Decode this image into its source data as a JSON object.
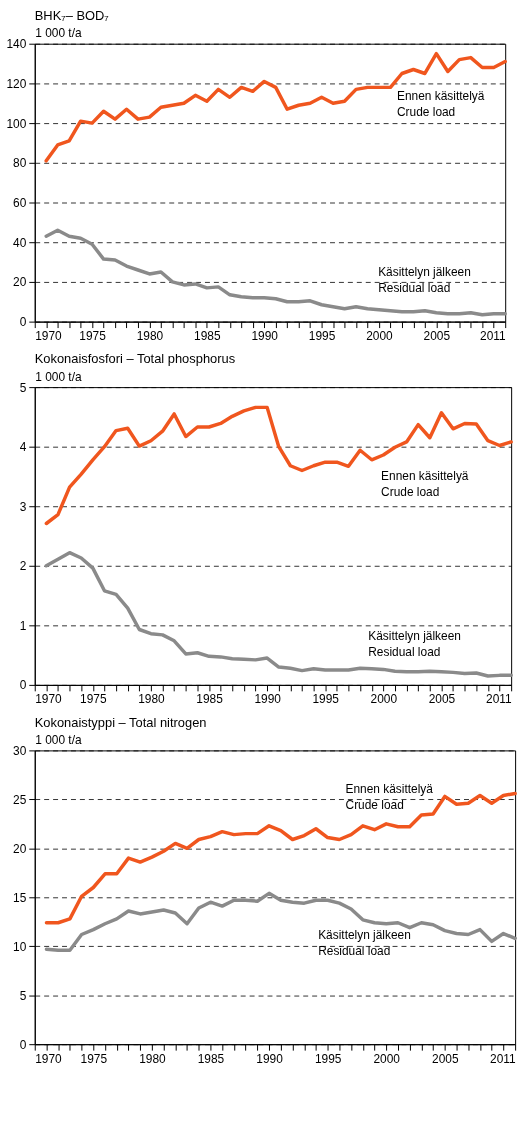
{
  "chart_data": [
    {
      "type": "line",
      "title": "BHK₇– BOD₇",
      "ylabel": "1 000 t/a",
      "x": [
        1971,
        1972,
        1973,
        1974,
        1975,
        1976,
        1977,
        1978,
        1979,
        1980,
        1981,
        1982,
        1983,
        1984,
        1985,
        1986,
        1987,
        1988,
        1989,
        1990,
        1991,
        1992,
        1993,
        1994,
        1995,
        1996,
        1997,
        1998,
        1999,
        2000,
        2001,
        2002,
        2003,
        2004,
        2005,
        2006,
        2007,
        2008,
        2009,
        2010,
        2011
      ],
      "series": [
        {
          "name": "Ennen käsittelyä\nCrude load",
          "color": "#f0561e",
          "values": [
            81,
            89,
            91,
            101,
            100,
            106,
            102,
            107,
            102,
            103,
            108,
            109,
            110,
            114,
            111,
            117,
            113,
            118,
            116,
            121,
            118,
            107,
            109,
            110,
            113,
            110,
            111,
            117,
            118,
            118,
            118,
            125,
            127,
            125,
            135,
            126,
            132,
            133,
            128,
            128,
            131
          ]
        },
        {
          "name": "Käsittelyn jälkeen\nResidual load",
          "color": "#8a8a8a",
          "values": [
            43,
            46,
            43,
            42,
            39,
            31.5,
            31,
            28,
            26,
            24,
            25,
            20,
            18.5,
            19,
            17,
            17.5,
            13.5,
            12.5,
            12,
            12,
            11.5,
            10,
            10,
            10.5,
            8.5,
            7.5,
            6.5,
            7.5,
            6.5,
            6,
            5.5,
            5,
            5,
            5.5,
            4.5,
            4,
            4,
            4.5,
            3.5,
            4,
            4
          ]
        }
      ],
      "xlim": [
        1970,
        2011
      ],
      "xticks": [
        1970,
        {
          "value": 1971,
          "label": null
        },
        {
          "value": 1972,
          "label": null
        },
        {
          "value": 1973,
          "label": null
        },
        {
          "value": 1974,
          "label": null
        },
        1975,
        {
          "value": 1976,
          "label": null
        },
        {
          "value": 1977,
          "label": null
        },
        {
          "value": 1978,
          "label": null
        },
        {
          "value": 1979,
          "label": null
        },
        1980,
        {
          "value": 1981,
          "label": null
        },
        {
          "value": 1982,
          "label": null
        },
        {
          "value": 1983,
          "label": null
        },
        {
          "value": 1984,
          "label": null
        },
        1985,
        {
          "value": 1986,
          "label": null
        },
        {
          "value": 1987,
          "label": null
        },
        {
          "value": 1988,
          "label": null
        },
        {
          "value": 1989,
          "label": null
        },
        1990,
        {
          "value": 1991,
          "label": null
        },
        {
          "value": 1992,
          "label": null
        },
        {
          "value": 1993,
          "label": null
        },
        {
          "value": 1994,
          "label": null
        },
        1995,
        {
          "value": 1996,
          "label": null
        },
        {
          "value": 1997,
          "label": null
        },
        {
          "value": 1998,
          "label": null
        },
        {
          "value": 1999,
          "label": null
        },
        2000,
        {
          "value": 2001,
          "label": null
        },
        {
          "value": 2002,
          "label": null
        },
        {
          "value": 2003,
          "label": null
        },
        {
          "value": 2004,
          "label": null
        },
        2005,
        {
          "value": 2006,
          "label": null
        },
        {
          "value": 2007,
          "label": null
        },
        {
          "value": 2008,
          "label": null
        },
        {
          "value": 2009,
          "label": null
        },
        {
          "value": 2010,
          "label": null
        },
        2011
      ],
      "ylim": [
        0,
        140
      ],
      "yticks": [
        0,
        20,
        40,
        60,
        80,
        100,
        120,
        140
      ],
      "grid": "y"
    },
    {
      "type": "line",
      "title": "Kokonaisfosfori – Total phosphorus",
      "ylabel": "1 000 t/a",
      "x": [
        1971,
        1972,
        1973,
        1974,
        1975,
        1976,
        1977,
        1978,
        1979,
        1980,
        1981,
        1982,
        1983,
        1984,
        1985,
        1986,
        1987,
        1988,
        1989,
        1990,
        1991,
        1992,
        1993,
        1994,
        1995,
        1996,
        1997,
        1998,
        1999,
        2000,
        2001,
        2002,
        2003,
        2004,
        2005,
        2006,
        2007,
        2008,
        2009,
        2010,
        2011
      ],
      "series": [
        {
          "name": "Ennen käsittelyä\nCrude load",
          "color": "#f0561e",
          "values": [
            2.71,
            2.86,
            3.32,
            3.54,
            3.78,
            4.0,
            4.27,
            4.31,
            4.01,
            4.1,
            4.26,
            4.55,
            4.17,
            4.33,
            4.33,
            4.39,
            4.51,
            4.6,
            4.66,
            4.66,
            4.0,
            3.68,
            3.6,
            3.68,
            3.74,
            3.74,
            3.67,
            3.94,
            3.78,
            3.86,
            3.99,
            4.08,
            4.37,
            4.15,
            4.57,
            4.3,
            4.39,
            4.38,
            4.1,
            4.02,
            4.08
          ]
        },
        {
          "name": "Käsittelyn jälkeen\nResidual load",
          "color": "#8a8a8a",
          "values": [
            2.0,
            2.11,
            2.22,
            2.13,
            1.96,
            1.58,
            1.52,
            1.29,
            0.93,
            0.86,
            0.84,
            0.74,
            0.52,
            0.54,
            0.48,
            0.47,
            0.44,
            0.43,
            0.42,
            0.45,
            0.3,
            0.28,
            0.24,
            0.27,
            0.25,
            0.25,
            0.25,
            0.28,
            0.27,
            0.26,
            0.23,
            0.22,
            0.22,
            0.23,
            0.22,
            0.21,
            0.19,
            0.2,
            0.15,
            0.16,
            0.16
          ]
        }
      ],
      "xlim": [
        1970,
        2011
      ],
      "xticks": [
        1970,
        {
          "value": 1971,
          "label": null
        },
        {
          "value": 1972,
          "label": null
        },
        {
          "value": 1973,
          "label": null
        },
        {
          "value": 1974,
          "label": null
        },
        1975,
        {
          "value": 1976,
          "label": null
        },
        {
          "value": 1977,
          "label": null
        },
        {
          "value": 1978,
          "label": null
        },
        {
          "value": 1979,
          "label": null
        },
        1980,
        {
          "value": 1981,
          "label": null
        },
        {
          "value": 1982,
          "label": null
        },
        {
          "value": 1983,
          "label": null
        },
        {
          "value": 1984,
          "label": null
        },
        1985,
        {
          "value": 1986,
          "label": null
        },
        {
          "value": 1987,
          "label": null
        },
        {
          "value": 1988,
          "label": null
        },
        {
          "value": 1989,
          "label": null
        },
        1990,
        {
          "value": 1991,
          "label": null
        },
        {
          "value": 1992,
          "label": null
        },
        {
          "value": 1993,
          "label": null
        },
        {
          "value": 1994,
          "label": null
        },
        1995,
        {
          "value": 1996,
          "label": null
        },
        {
          "value": 1997,
          "label": null
        },
        {
          "value": 1998,
          "label": null
        },
        {
          "value": 1999,
          "label": null
        },
        2000,
        {
          "value": 2001,
          "label": null
        },
        {
          "value": 2002,
          "label": null
        },
        {
          "value": 2003,
          "label": null
        },
        {
          "value": 2004,
          "label": null
        },
        2005,
        {
          "value": 2006,
          "label": null
        },
        {
          "value": 2007,
          "label": null
        },
        {
          "value": 2008,
          "label": null
        },
        {
          "value": 2009,
          "label": null
        },
        {
          "value": 2010,
          "label": null
        },
        2011
      ],
      "ylim": [
        0,
        5
      ],
      "yticks": [
        0,
        1,
        2,
        3,
        4,
        5
      ],
      "grid": "y"
    },
    {
      "type": "line",
      "title": "Kokonaistyppi – Total nitrogen",
      "ylabel": "1 000 t/a",
      "x": [
        1971,
        1972,
        1973,
        1974,
        1975,
        1976,
        1977,
        1978,
        1979,
        1980,
        1981,
        1982,
        1983,
        1984,
        1985,
        1986,
        1987,
        1988,
        1989,
        1990,
        1991,
        1992,
        1993,
        1994,
        1995,
        1996,
        1997,
        1998,
        1999,
        2000,
        2001,
        2002,
        2003,
        2004,
        2005,
        2006,
        2007,
        2008,
        2009,
        2010,
        2011
      ],
      "series": [
        {
          "name": "Ennen käsittelyä\nCrude load",
          "color": "#f0561e",
          "values": [
            12.4,
            12.4,
            12.8,
            15.1,
            16.0,
            17.4,
            17.4,
            19.0,
            18.6,
            19.1,
            19.7,
            20.5,
            20.0,
            20.9,
            21.2,
            21.7,
            21.4,
            21.5,
            21.5,
            22.3,
            21.8,
            20.9,
            21.3,
            22.0,
            21.1,
            20.9,
            21.4,
            22.3,
            21.9,
            22.5,
            22.2,
            22.2,
            23.4,
            23.5,
            25.3,
            24.5,
            24.6,
            25.4,
            24.6,
            25.4,
            25.6
          ]
        },
        {
          "name": "Käsittelyn jälkeen\nResidual load",
          "color": "#8a8a8a",
          "values": [
            9.7,
            9.6,
            9.6,
            11.2,
            11.7,
            12.3,
            12.8,
            13.6,
            13.3,
            13.5,
            13.7,
            13.4,
            12.3,
            13.9,
            14.5,
            14.1,
            14.7,
            14.7,
            14.6,
            15.4,
            14.7,
            14.5,
            14.4,
            14.7,
            14.7,
            14.4,
            13.8,
            12.7,
            12.4,
            12.3,
            12.4,
            11.9,
            12.4,
            12.2,
            11.6,
            11.3,
            11.2,
            11.7,
            10.5,
            11.3,
            10.8
          ]
        }
      ],
      "xlim": [
        1970,
        2011
      ],
      "xticks": [
        1970,
        {
          "value": 1971,
          "label": null
        },
        {
          "value": 1972,
          "label": null
        },
        {
          "value": 1973,
          "label": null
        },
        {
          "value": 1974,
          "label": null
        },
        1975,
        {
          "value": 1976,
          "label": null
        },
        {
          "value": 1977,
          "label": null
        },
        {
          "value": 1978,
          "label": null
        },
        {
          "value": 1979,
          "label": null
        },
        1980,
        {
          "value": 1981,
          "label": null
        },
        {
          "value": 1982,
          "label": null
        },
        {
          "value": 1983,
          "label": null
        },
        {
          "value": 1984,
          "label": null
        },
        1985,
        {
          "value": 1986,
          "label": null
        },
        {
          "value": 1987,
          "label": null
        },
        {
          "value": 1988,
          "label": null
        },
        {
          "value": 1989,
          "label": null
        },
        1990,
        {
          "value": 1991,
          "label": null
        },
        {
          "value": 1992,
          "label": null
        },
        {
          "value": 1993,
          "label": null
        },
        {
          "value": 1994,
          "label": null
        },
        1995,
        {
          "value": 1996,
          "label": null
        },
        {
          "value": 1997,
          "label": null
        },
        {
          "value": 1998,
          "label": null
        },
        {
          "value": 1999,
          "label": null
        },
        2000,
        {
          "value": 2001,
          "label": null
        },
        {
          "value": 2002,
          "label": null
        },
        {
          "value": 2003,
          "label": null
        },
        {
          "value": 2004,
          "label": null
        },
        2005,
        {
          "value": 2006,
          "label": null
        },
        {
          "value": 2007,
          "label": null
        },
        {
          "value": 2008,
          "label": null
        },
        {
          "value": 2009,
          "label": null
        },
        {
          "value": 2010,
          "label": null
        },
        2011
      ],
      "ylim": [
        0,
        30
      ],
      "yticks": [
        0,
        5,
        10,
        15,
        20,
        25,
        30
      ],
      "grid": "y"
    }
  ]
}
